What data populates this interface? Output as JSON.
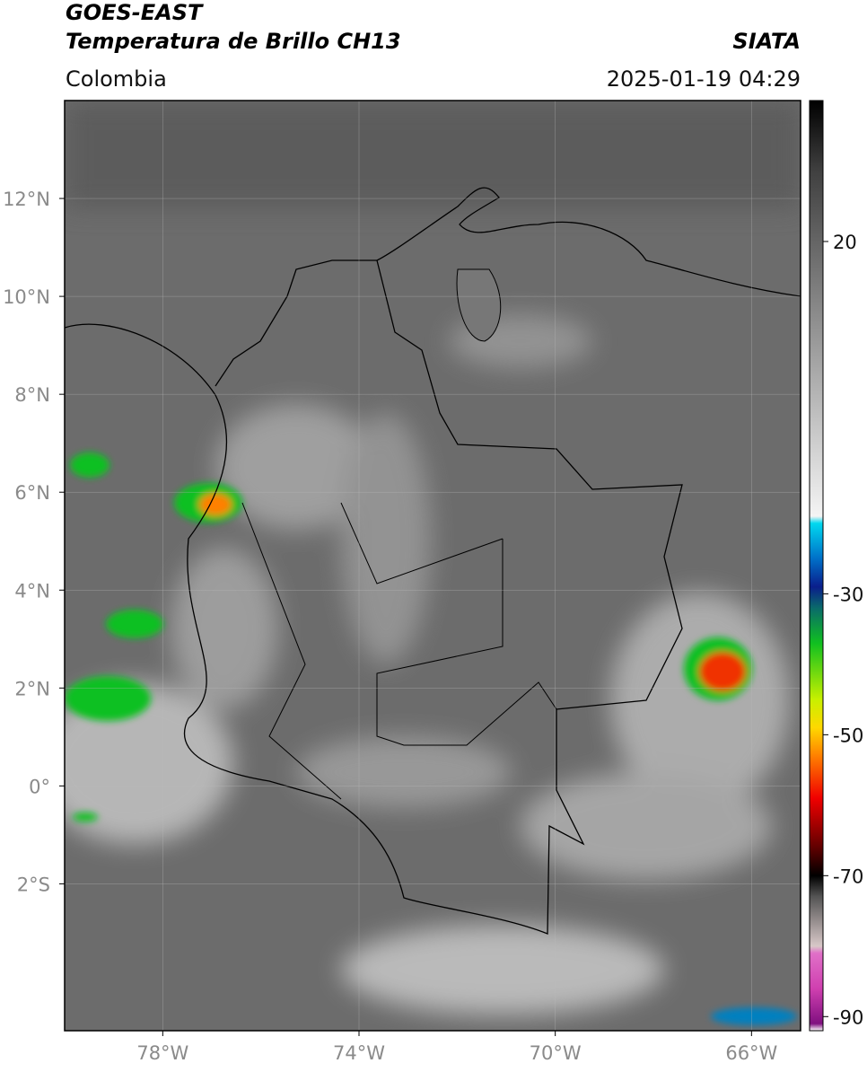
{
  "header": {
    "satellite": "GOES-EAST",
    "product": "Temperatura de Brillo CH13",
    "source": "SIATA",
    "region": "Colombia",
    "datetime": "2025-01-19 04:29"
  },
  "map": {
    "lonlim": [
      -80,
      -65
    ],
    "latlim": [
      -5,
      14
    ],
    "grid": true,
    "lonticks": [
      {
        "value": -78,
        "label": "78°W"
      },
      {
        "value": -74,
        "label": "74°W"
      },
      {
        "value": -70,
        "label": "70°W"
      },
      {
        "value": -66,
        "label": "66°W"
      }
    ],
    "latticks": [
      {
        "value": 12,
        "label": "12°N"
      },
      {
        "value": 10,
        "label": "10°N"
      },
      {
        "value": 8,
        "label": "8°N"
      },
      {
        "value": 6,
        "label": "6°N"
      },
      {
        "value": 4,
        "label": "4°N"
      },
      {
        "value": 2,
        "label": "2°N"
      },
      {
        "value": 0,
        "label": "0°"
      },
      {
        "value": -2,
        "label": "2°S"
      }
    ]
  },
  "colorbar": {
    "lim": [
      -92,
      40
    ],
    "ticks": [
      20,
      -30,
      -50,
      -70,
      -90
    ],
    "stops": [
      [
        40,
        "#000000"
      ],
      [
        30,
        "#404040"
      ],
      [
        10,
        "#8a8a8a"
      ],
      [
        -19,
        "#f4f4f4"
      ],
      [
        -20,
        "#00d8f0"
      ],
      [
        -25,
        "#0070c8"
      ],
      [
        -29,
        "#0a1e8c"
      ],
      [
        -32,
        "#0a6a6a"
      ],
      [
        -37,
        "#10c020"
      ],
      [
        -45,
        "#c8f000"
      ],
      [
        -49,
        "#ffd800"
      ],
      [
        -53,
        "#ff8000"
      ],
      [
        -59,
        "#f00000"
      ],
      [
        -66,
        "#600000"
      ],
      [
        -70,
        "#000000"
      ],
      [
        -73,
        "#555555"
      ],
      [
        -80,
        "#d8c8c8"
      ],
      [
        -81,
        "#e070c8"
      ],
      [
        -86,
        "#d040b0"
      ],
      [
        -91,
        "#801080"
      ],
      [
        -92,
        "#ffffff"
      ]
    ]
  }
}
